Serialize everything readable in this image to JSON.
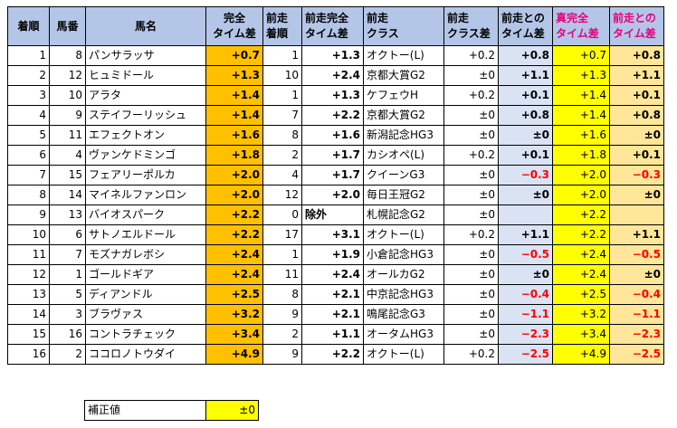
{
  "headers": {
    "finish": "着順",
    "horse_no": "馬番",
    "horse_name": "馬名",
    "perfect_time_diff": "完全\nタイム差",
    "prev_finish": "前走\n着順",
    "prev_perfect_time_diff": "前走完全\nタイム差",
    "prev_class": "前走\nクラス",
    "prev_class_diff": "前走\nクラス差",
    "prev_time_diff": "前走との\nタイム差",
    "true_perfect_time_diff": "真完全\nタイム差",
    "prev_time_diff2": "前走との\nタイム差"
  },
  "rows": [
    {
      "finish": "1",
      "no": "8",
      "name": "パンサラッサ",
      "perfect": "+0.7",
      "prev_finish": "1",
      "prev_perfect": "+1.3",
      "prev_class": "オクトー(L)",
      "class_diff": "+0.2",
      "prev_diff": "+0.8",
      "prev_diff_neg": false,
      "true_perfect": "+0.7",
      "diff2": "+0.8",
      "diff2_neg": false
    },
    {
      "finish": "2",
      "no": "12",
      "name": "ヒュミドール",
      "perfect": "+1.3",
      "prev_finish": "10",
      "prev_perfect": "+2.4",
      "prev_class": "京都大賞G2",
      "class_diff": "±0",
      "prev_diff": "+1.1",
      "prev_diff_neg": false,
      "true_perfect": "+1.3",
      "diff2": "+1.1",
      "diff2_neg": false
    },
    {
      "finish": "3",
      "no": "10",
      "name": "アラタ",
      "perfect": "+1.4",
      "prev_finish": "1",
      "prev_perfect": "+1.3",
      "prev_class": "ケフェウH",
      "class_diff": "+0.2",
      "prev_diff": "+0.1",
      "prev_diff_neg": false,
      "true_perfect": "+1.4",
      "diff2": "+0.1",
      "diff2_neg": false
    },
    {
      "finish": "4",
      "no": "9",
      "name": "ステイフーリッシュ",
      "perfect": "+1.4",
      "prev_finish": "7",
      "prev_perfect": "+2.2",
      "prev_class": "京都大賞G2",
      "class_diff": "±0",
      "prev_diff": "+0.8",
      "prev_diff_neg": false,
      "true_perfect": "+1.4",
      "diff2": "+0.8",
      "diff2_neg": false
    },
    {
      "finish": "5",
      "no": "11",
      "name": "エフェクトオン",
      "perfect": "+1.6",
      "prev_finish": "8",
      "prev_perfect": "+1.6",
      "prev_class": "新潟記念HG3",
      "class_diff": "±0",
      "prev_diff": "±0",
      "prev_diff_neg": false,
      "true_perfect": "+1.6",
      "diff2": "±0",
      "diff2_neg": false
    },
    {
      "finish": "6",
      "no": "4",
      "name": "ヴァンケドミンゴ",
      "perfect": "+1.8",
      "prev_finish": "2",
      "prev_perfect": "+1.7",
      "prev_class": "カシオペ(L)",
      "class_diff": "+0.2",
      "prev_diff": "+0.1",
      "prev_diff_neg": false,
      "true_perfect": "+1.8",
      "diff2": "+0.1",
      "diff2_neg": false
    },
    {
      "finish": "7",
      "no": "15",
      "name": "フェアリーポルカ",
      "perfect": "+2.0",
      "prev_finish": "4",
      "prev_perfect": "+1.7",
      "prev_class": "クイーンG3",
      "class_diff": "±0",
      "prev_diff": "−0.3",
      "prev_diff_neg": true,
      "true_perfect": "+2.0",
      "diff2": "−0.3",
      "diff2_neg": true
    },
    {
      "finish": "8",
      "no": "14",
      "name": "マイネルファンロン",
      "perfect": "+2.0",
      "prev_finish": "12",
      "prev_perfect": "+2.0",
      "prev_class": "毎日王冠G2",
      "class_diff": "±0",
      "prev_diff": "±0",
      "prev_diff_neg": false,
      "true_perfect": "+2.0",
      "diff2": "±0",
      "diff2_neg": false
    },
    {
      "finish": "9",
      "no": "13",
      "name": "バイオスパーク",
      "perfect": "+2.2",
      "prev_finish": "0",
      "prev_perfect": "除外",
      "prev_class": "札幌記念G2",
      "class_diff": "±0",
      "prev_diff": "",
      "prev_diff_neg": false,
      "true_perfect": "+2.2",
      "diff2": "",
      "diff2_neg": false
    },
    {
      "finish": "10",
      "no": "6",
      "name": "サトノエルドール",
      "perfect": "+2.2",
      "prev_finish": "17",
      "prev_perfect": "+3.1",
      "prev_class": "オクトー(L)",
      "class_diff": "+0.2",
      "prev_diff": "+1.1",
      "prev_diff_neg": false,
      "true_perfect": "+2.2",
      "diff2": "+1.1",
      "diff2_neg": false
    },
    {
      "finish": "11",
      "no": "7",
      "name": "モズナガレボシ",
      "perfect": "+2.4",
      "prev_finish": "1",
      "prev_perfect": "+1.9",
      "prev_class": "小倉記念HG3",
      "class_diff": "±0",
      "prev_diff": "−0.5",
      "prev_diff_neg": true,
      "true_perfect": "+2.4",
      "diff2": "−0.5",
      "diff2_neg": true
    },
    {
      "finish": "12",
      "no": "1",
      "name": "ゴールドギア",
      "perfect": "+2.4",
      "prev_finish": "11",
      "prev_perfect": "+2.4",
      "prev_class": "オールカG2",
      "class_diff": "±0",
      "prev_diff": "±0",
      "prev_diff_neg": false,
      "true_perfect": "+2.4",
      "diff2": "±0",
      "diff2_neg": false
    },
    {
      "finish": "13",
      "no": "5",
      "name": "ディアンドル",
      "perfect": "+2.5",
      "prev_finish": "8",
      "prev_perfect": "+2.1",
      "prev_class": "中京記念HG3",
      "class_diff": "±0",
      "prev_diff": "−0.4",
      "prev_diff_neg": true,
      "true_perfect": "+2.5",
      "diff2": "−0.4",
      "diff2_neg": true
    },
    {
      "finish": "14",
      "no": "3",
      "name": "ブラヴァス",
      "perfect": "+3.2",
      "prev_finish": "9",
      "prev_perfect": "+2.1",
      "prev_class": "鳴尾記念G3",
      "class_diff": "±0",
      "prev_diff": "−1.1",
      "prev_diff_neg": true,
      "true_perfect": "+3.2",
      "diff2": "−1.1",
      "diff2_neg": true
    },
    {
      "finish": "15",
      "no": "16",
      "name": "コントラチェック",
      "perfect": "+3.4",
      "prev_finish": "2",
      "prev_perfect": "+1.1",
      "prev_class": "オータムHG3",
      "class_diff": "±0",
      "prev_diff": "−2.3",
      "prev_diff_neg": true,
      "true_perfect": "+3.4",
      "diff2": "−2.3",
      "diff2_neg": true
    },
    {
      "finish": "16",
      "no": "2",
      "name": "ココロノトウダイ",
      "perfect": "+4.9",
      "prev_finish": "9",
      "prev_perfect": "+2.2",
      "prev_class": "オクトー(L)",
      "class_diff": "+0.2",
      "prev_diff": "−2.5",
      "prev_diff_neg": true,
      "true_perfect": "+4.9",
      "diff2": "−2.5",
      "diff2_neg": true
    }
  ],
  "correction": {
    "label": "補正値",
    "value": "±0"
  },
  "colors": {
    "header_bg": "#b4c6e7",
    "orange": "#ffc000",
    "yellow": "#ffff00",
    "light_orange": "#ffe699",
    "pink_text": "#e60080",
    "neg_text": "#ff0000"
  }
}
